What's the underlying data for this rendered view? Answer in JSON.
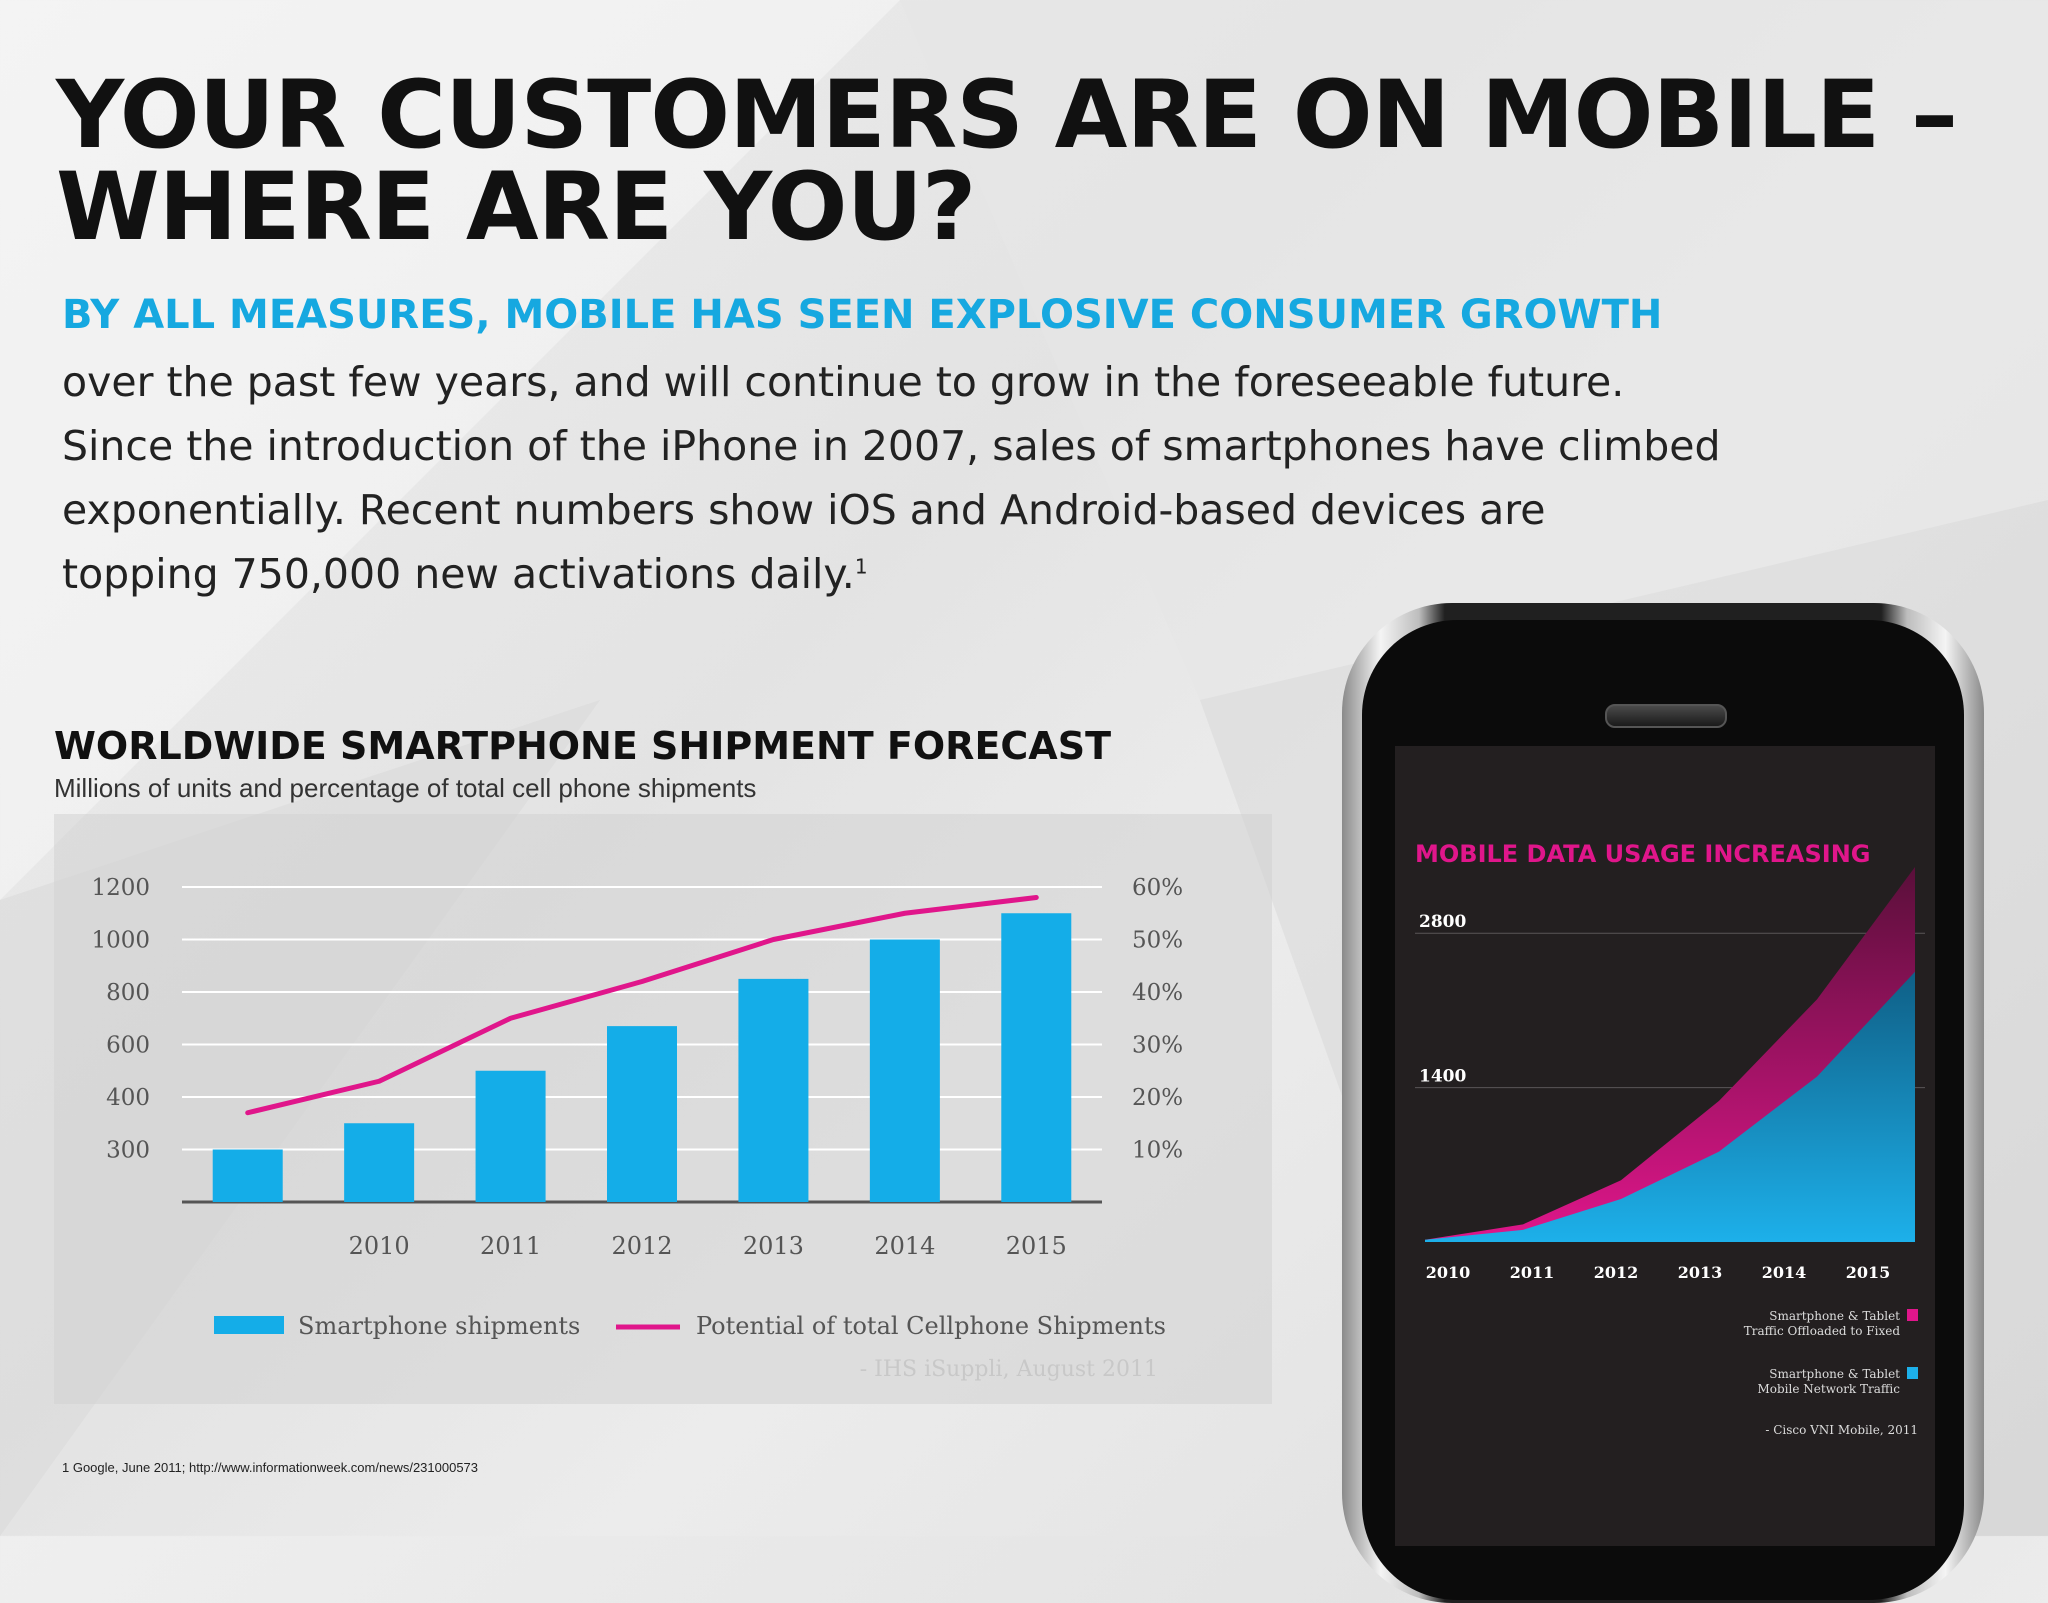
{
  "headline": {
    "line1": "YOUR CUSTOMERS ARE ON MOBILE –",
    "line2": "WHERE ARE YOU?"
  },
  "intro": {
    "heading": "BY ALL MEASURES, MOBILE HAS SEEN EXPLOSIVE CONSUMER GROWTH",
    "lines": [
      "over the past few years, and will continue to grow in the foreseeable future.",
      "Since the introduction of the iPhone in 2007, sales of smartphones have climbed",
      "exponentially. Recent numbers show iOS and Android-based devices are",
      "topping 750,000 new activations daily."
    ],
    "footnote_marker": "1"
  },
  "chart_section": {
    "title": "WORLDWIDE SMARTPHONE SHIPMENT FORECAST",
    "subtitle": "Millions of units and percentage of total cell phone shipments"
  },
  "footnote": "1 Google, June 2011; http://www.informationweek.com/news/231000573",
  "colors": {
    "accent_blue": "#16a8e0",
    "bar_blue": "#14ade8",
    "line_magenta": "#e0168b",
    "screen_bg": "#231f20",
    "screen_title": "#e0168b"
  },
  "chart_data": [
    {
      "type": "bar",
      "title": "WORLDWIDE SMARTPHONE SHIPMENT FORECAST",
      "subtitle": "Millions of units and percentage of total cell phone shipments",
      "categories": [
        "",
        "2010",
        "2011",
        "2012",
        "2013",
        "2014",
        "2015"
      ],
      "y_tick_labels": [
        "300",
        "400",
        "600",
        "800",
        "1000",
        "1200"
      ],
      "y2_tick_labels": [
        "10%",
        "20%",
        "30%",
        "40%",
        "50%",
        "60%"
      ],
      "ylim_levels": [
        0,
        6
      ],
      "series": [
        {
          "name": "Smartphone shipments",
          "kind": "bar",
          "values": [
            300,
            350,
            500,
            670,
            850,
            1000,
            1100
          ]
        },
        {
          "name": "Potential of total Cellphone Shipments",
          "kind": "line",
          "values_pct": [
            17,
            23,
            35,
            42,
            50,
            55,
            58
          ]
        }
      ],
      "legend": [
        "Smartphone shipments",
        "Potential of total Cellphone Shipments"
      ],
      "source": "- IHS iSuppli, August 2011",
      "grid": true
    },
    {
      "type": "area",
      "title": "MOBILE DATA USAGE INCREASING",
      "x": [
        "2010",
        "2011",
        "2012",
        "2013",
        "2014",
        "2015"
      ],
      "y_tick_labels": [
        "1400",
        "2800"
      ],
      "ylim": [
        0,
        3500
      ],
      "series": [
        {
          "name": "Smartphone & Tablet Mobile Network Traffic",
          "values": [
            20,
            110,
            390,
            820,
            1500,
            2450
          ]
        },
        {
          "name": "Smartphone & Tablet Traffic Offloaded to Fixed",
          "values": [
            20,
            160,
            560,
            1280,
            2200,
            3400
          ]
        }
      ],
      "legend": [
        {
          "line1": "Smartphone & Tablet",
          "line2": "Traffic Offloaded to Fixed"
        },
        {
          "line1": "Smartphone & Tablet",
          "line2": "Mobile Network Traffic"
        }
      ],
      "source": "- Cisco VNI Mobile, 2011"
    }
  ]
}
